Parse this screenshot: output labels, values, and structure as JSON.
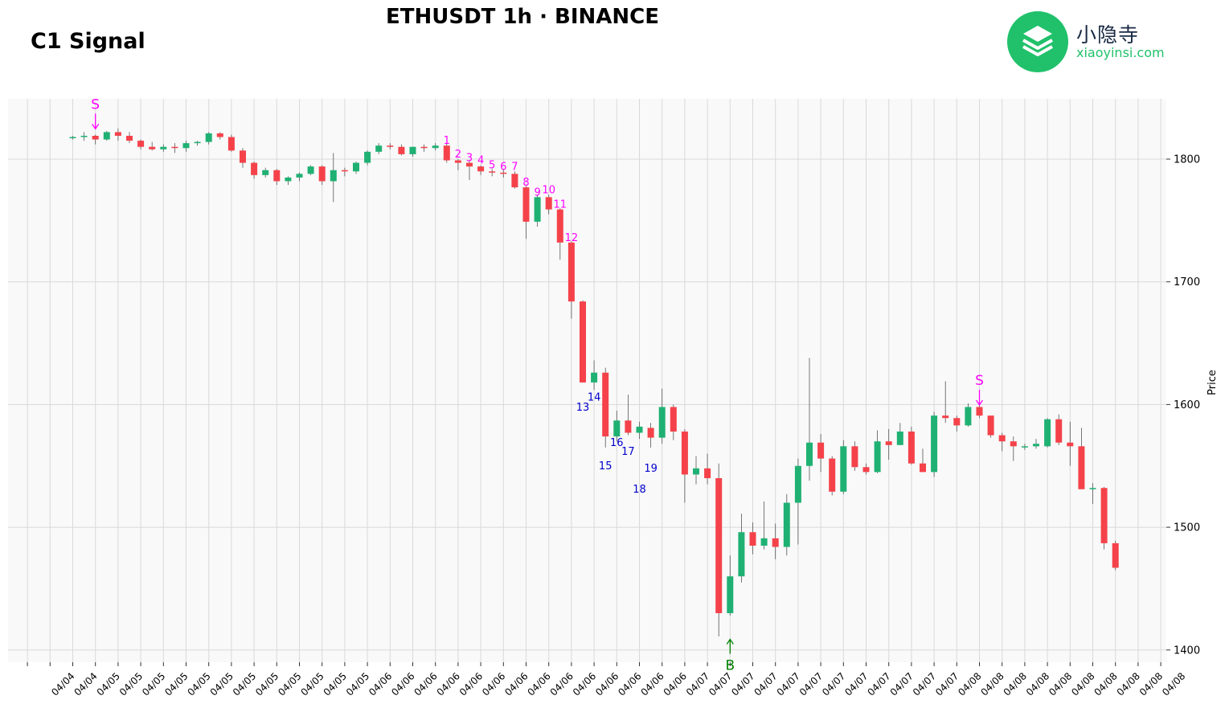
{
  "title": "ETHUSDT 1h · BINANCE",
  "subtitle": "C1 Signal",
  "logo": {
    "cn": "小隐寺",
    "en": "xiaoyinsi.com",
    "icon": "layers-icon",
    "color": "#21c16b"
  },
  "colors": {
    "up": "#1fb173",
    "down": "#f5424a",
    "sell_marker": "#ff00ff",
    "buy_marker": "#008000",
    "count_up": "#ff00ff",
    "count_down": "#0000cc"
  },
  "chart_data": {
    "type": "candlestick",
    "ylabel": "Price",
    "yticks": [
      1400,
      1500,
      1600,
      1700,
      1800
    ],
    "ylim": [
      1390,
      1839
    ],
    "x_tick_labels": [
      "04/04",
      "04/04",
      "04/05",
      "04/05",
      "04/05",
      "04/05",
      "04/05",
      "04/05",
      "04/05",
      "04/05",
      "04/05",
      "04/05",
      "04/05",
      "04/05",
      "04/06",
      "04/06",
      "04/06",
      "04/06",
      "04/06",
      "04/06",
      "04/06",
      "04/06",
      "04/06",
      "04/06",
      "04/06",
      "04/06",
      "04/06",
      "04/06",
      "04/07",
      "04/07",
      "04/07",
      "04/07",
      "04/07",
      "04/07",
      "04/07",
      "04/07",
      "04/07",
      "04/07",
      "04/07",
      "04/07",
      "04/08",
      "04/08",
      "04/08",
      "04/08",
      "04/08",
      "04/08",
      "04/08",
      "04/08",
      "04/08",
      "04/08"
    ],
    "grid": true,
    "candles": [
      [
        1818,
        1819,
        1816,
        1818
      ],
      [
        1818,
        1822,
        1815,
        1819
      ],
      [
        1819,
        1820,
        1812,
        1816
      ],
      [
        1816,
        1823,
        1815,
        1822
      ],
      [
        1822,
        1825,
        1815,
        1819
      ],
      [
        1819,
        1822,
        1813,
        1815
      ],
      [
        1815,
        1816,
        1808,
        1810
      ],
      [
        1810,
        1814,
        1807,
        1808
      ],
      [
        1808,
        1812,
        1806,
        1810
      ],
      [
        1810,
        1813,
        1805,
        1809
      ],
      [
        1809,
        1815,
        1806,
        1813
      ],
      [
        1813,
        1815,
        1811,
        1814
      ],
      [
        1814,
        1822,
        1812,
        1821
      ],
      [
        1821,
        1822,
        1816,
        1818
      ],
      [
        1818,
        1820,
        1806,
        1807
      ],
      [
        1807,
        1809,
        1793,
        1797
      ],
      [
        1797,
        1798,
        1784,
        1787
      ],
      [
        1787,
        1793,
        1785,
        1791
      ],
      [
        1791,
        1792,
        1779,
        1782
      ],
      [
        1782,
        1786,
        1779,
        1785
      ],
      [
        1785,
        1789,
        1782,
        1788
      ],
      [
        1788,
        1795,
        1787,
        1794
      ],
      [
        1794,
        1795,
        1779,
        1782
      ],
      [
        1782,
        1805,
        1765,
        1791
      ],
      [
        1791,
        1793,
        1786,
        1790
      ],
      [
        1790,
        1798,
        1788,
        1797
      ],
      [
        1797,
        1807,
        1795,
        1806
      ],
      [
        1806,
        1813,
        1804,
        1811
      ],
      [
        1811,
        1813,
        1808,
        1810
      ],
      [
        1810,
        1812,
        1803,
        1804
      ],
      [
        1804,
        1810,
        1802,
        1810
      ],
      [
        1810,
        1812,
        1806,
        1809
      ],
      [
        1809,
        1813,
        1807,
        1811
      ],
      [
        1811,
        1813,
        1797,
        1799
      ],
      [
        1799,
        1800,
        1791,
        1797
      ],
      [
        1797,
        1799,
        1783,
        1794
      ],
      [
        1794,
        1795,
        1787,
        1790
      ],
      [
        1790,
        1792,
        1786,
        1789
      ],
      [
        1789,
        1792,
        1785,
        1788
      ],
      [
        1788,
        1790,
        1776,
        1777
      ],
      [
        1777,
        1778,
        1735,
        1749
      ],
      [
        1749,
        1771,
        1745,
        1769
      ],
      [
        1769,
        1771,
        1755,
        1759
      ],
      [
        1759,
        1760,
        1718,
        1732
      ],
      [
        1732,
        1733,
        1670,
        1684
      ],
      [
        1684,
        1685,
        1618,
        1618
      ],
      [
        1618,
        1636,
        1612,
        1626
      ],
      [
        1626,
        1630,
        1565,
        1574
      ],
      [
        1574,
        1595,
        1570,
        1587
      ],
      [
        1587,
        1608,
        1575,
        1577
      ],
      [
        1577,
        1586,
        1572,
        1582
      ],
      [
        1581,
        1585,
        1565,
        1573
      ],
      [
        1573,
        1613,
        1568,
        1598
      ],
      [
        1598,
        1600,
        1571,
        1578
      ],
      [
        1578,
        1580,
        1520,
        1543
      ],
      [
        1543,
        1558,
        1535,
        1548
      ],
      [
        1548,
        1560,
        1535,
        1540
      ],
      [
        1540,
        1552,
        1411,
        1430
      ],
      [
        1430,
        1477,
        1428,
        1460
      ],
      [
        1460,
        1511,
        1455,
        1496
      ],
      [
        1496,
        1504,
        1478,
        1485
      ],
      [
        1485,
        1521,
        1482,
        1491
      ],
      [
        1491,
        1503,
        1474,
        1484
      ],
      [
        1484,
        1527,
        1477,
        1520
      ],
      [
        1520,
        1556,
        1486,
        1550
      ],
      [
        1550,
        1638,
        1538,
        1569
      ],
      [
        1569,
        1576,
        1545,
        1556
      ],
      [
        1556,
        1558,
        1526,
        1529
      ],
      [
        1529,
        1571,
        1527,
        1566
      ],
      [
        1566,
        1570,
        1546,
        1549
      ],
      [
        1549,
        1552,
        1543,
        1545
      ],
      [
        1545,
        1579,
        1544,
        1570
      ],
      [
        1570,
        1580,
        1555,
        1567
      ],
      [
        1567,
        1585,
        1567,
        1578
      ],
      [
        1578,
        1582,
        1551,
        1552
      ],
      [
        1552,
        1564,
        1545,
        1545
      ],
      [
        1545,
        1594,
        1541,
        1591
      ],
      [
        1591,
        1619,
        1585,
        1589
      ],
      [
        1589,
        1591,
        1578,
        1583
      ],
      [
        1583,
        1601,
        1582,
        1598
      ],
      [
        1598,
        1601,
        1589,
        1591
      ],
      [
        1591,
        1591,
        1573,
        1575
      ],
      [
        1575,
        1577,
        1562,
        1570
      ],
      [
        1570,
        1574,
        1554,
        1566
      ],
      [
        1566,
        1568,
        1563,
        1566
      ],
      [
        1566,
        1572,
        1564,
        1568
      ],
      [
        1566,
        1589,
        1565,
        1588
      ],
      [
        1588,
        1592,
        1567,
        1569
      ],
      [
        1569,
        1586,
        1550,
        1566
      ],
      [
        1566,
        1581,
        1531,
        1531
      ],
      [
        1531,
        1536,
        1519,
        1532
      ],
      [
        1532,
        1533,
        1482,
        1487
      ],
      [
        1487,
        1489,
        1465,
        1467
      ]
    ],
    "markers": [
      {
        "type": "S",
        "index": 2,
        "price": 1824
      },
      {
        "type": "S",
        "index": 80,
        "price": 1599
      },
      {
        "type": "B",
        "index": 58,
        "price": 1410
      }
    ],
    "counts": [
      {
        "text": "1",
        "index": 33,
        "price": 1811,
        "dir": "up"
      },
      {
        "text": "2",
        "index": 34,
        "price": 1800,
        "dir": "up"
      },
      {
        "text": "3",
        "index": 35,
        "price": 1797,
        "dir": "up"
      },
      {
        "text": "4",
        "index": 36,
        "price": 1795,
        "dir": "up"
      },
      {
        "text": "5",
        "index": 37,
        "price": 1791,
        "dir": "up"
      },
      {
        "text": "6",
        "index": 38,
        "price": 1790,
        "dir": "up"
      },
      {
        "text": "7",
        "index": 39,
        "price": 1790,
        "dir": "up"
      },
      {
        "text": "8",
        "index": 40,
        "price": 1777,
        "dir": "up"
      },
      {
        "text": "9",
        "index": 41,
        "price": 1769,
        "dir": "up"
      },
      {
        "text": "10",
        "index": 42,
        "price": 1771,
        "dir": "up"
      },
      {
        "text": "11",
        "index": 43,
        "price": 1759,
        "dir": "up"
      },
      {
        "text": "12",
        "index": 44,
        "price": 1732,
        "dir": "up"
      },
      {
        "text": "13",
        "index": 45,
        "price": 1603,
        "dir": "down"
      },
      {
        "text": "14",
        "index": 46,
        "price": 1611,
        "dir": "down"
      },
      {
        "text": "15",
        "index": 47,
        "price": 1555,
        "dir": "down"
      },
      {
        "text": "16",
        "index": 48,
        "price": 1574,
        "dir": "down"
      },
      {
        "text": "17",
        "index": 49,
        "price": 1567,
        "dir": "down"
      },
      {
        "text": "18",
        "index": 50,
        "price": 1536,
        "dir": "down"
      },
      {
        "text": "19",
        "index": 51,
        "price": 1553,
        "dir": "down"
      }
    ]
  }
}
